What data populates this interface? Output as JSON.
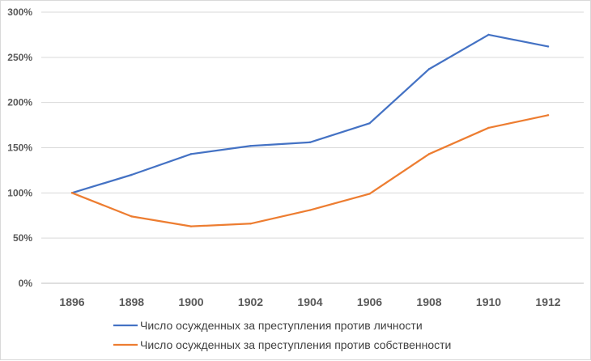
{
  "chart_data": {
    "type": "line",
    "title": "",
    "xlabel": "",
    "ylabel": "",
    "x": [
      "1896",
      "1898",
      "1900",
      "1902",
      "1904",
      "1906",
      "1908",
      "1910",
      "1912"
    ],
    "ylim": [
      0,
      300
    ],
    "yticks": [
      0,
      50,
      100,
      150,
      200,
      250,
      300
    ],
    "ytick_labels": [
      "0%",
      "50%",
      "100%",
      "150%",
      "200%",
      "250%",
      "300%"
    ],
    "grid": "horizontal",
    "legend_position": "bottom",
    "series": [
      {
        "name": "Число осужденных за преступления против личности",
        "color": "#4472c4",
        "values": [
          100,
          120,
          143,
          152,
          156,
          177,
          237,
          275,
          262
        ]
      },
      {
        "name": "Число осужденных за преступления против собственности",
        "color": "#ed7d31",
        "values": [
          100,
          74,
          63,
          66,
          81,
          99,
          143,
          172,
          186
        ]
      }
    ]
  }
}
